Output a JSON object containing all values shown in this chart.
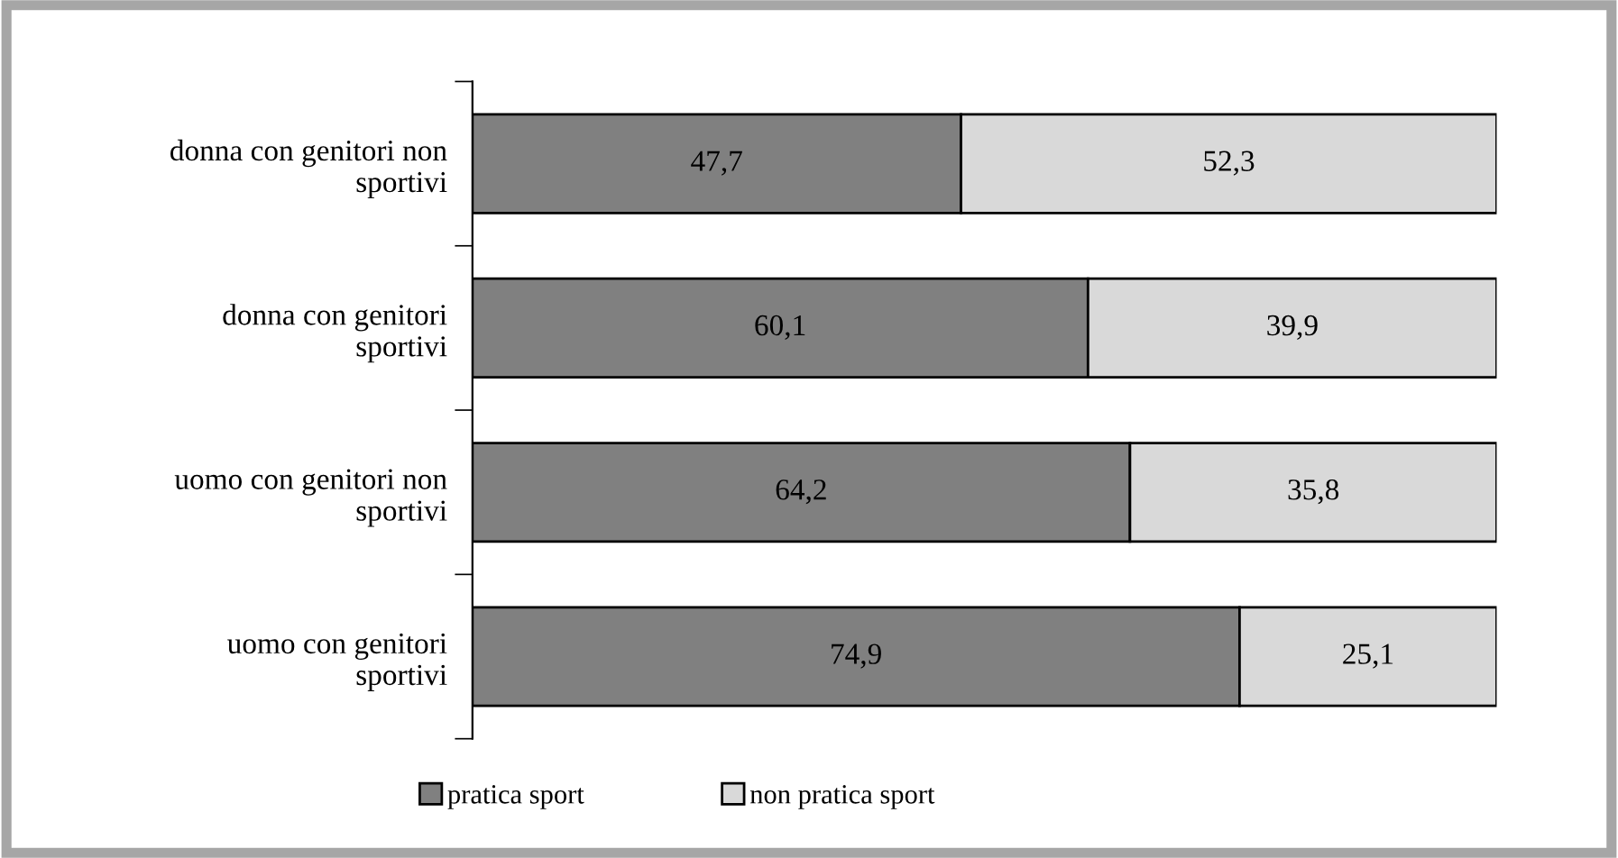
{
  "chart_data": {
    "type": "bar",
    "orientation": "horizontal",
    "stacked": true,
    "categories": [
      "donna con genitori non sportivi",
      "donna con genitori sportivi",
      "uomo con genitori non sportivi",
      "uomo con genitori sportivi"
    ],
    "series": [
      {
        "name": "pratica sport",
        "color": "#808080",
        "values": [
          47.7,
          60.1,
          64.2,
          74.9
        ],
        "value_labels": [
          "47,7",
          "60,1",
          "64,2",
          "74,9"
        ]
      },
      {
        "name": "non pratica sport",
        "color": "#d9d9d9",
        "values": [
          52.3,
          39.9,
          35.8,
          25.1
        ],
        "value_labels": [
          "52,3",
          "39,9",
          "35,8",
          "25,1"
        ]
      }
    ],
    "tick_labels": "y",
    "legend": "bottom",
    "grid": false
  }
}
